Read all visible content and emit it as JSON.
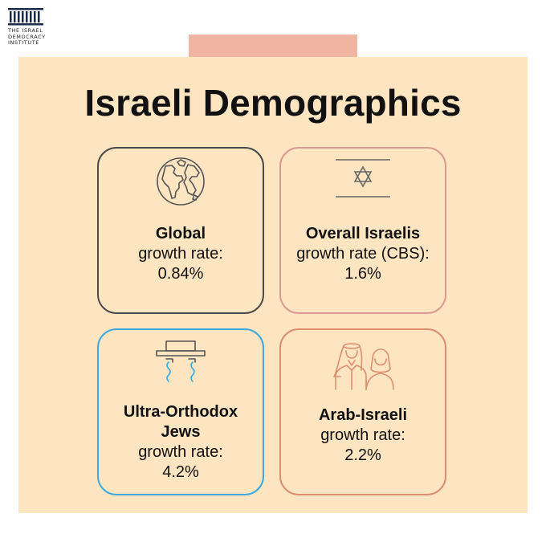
{
  "logo": {
    "line1": "THE ISRAEL",
    "line2": "DEMOCRACY",
    "line3": "INSTITUTE",
    "icon": "building-columns-icon"
  },
  "title": "Israeli Demographics",
  "cards": [
    {
      "label": "Global",
      "sub": "growth rate:",
      "value": "0.84%",
      "icon": "globe-icon",
      "border": "#4a4a4a"
    },
    {
      "label": "Overall Israelis",
      "sub": "growth rate (CBS):",
      "value": "1.6%",
      "icon": "israeli-flag-icon",
      "border": "#d89a92"
    },
    {
      "label": "Ultra-Orthodox",
      "label2": "Jews",
      "sub": "growth rate:",
      "value": "4.2%",
      "icon": "hat-and-sidelocks-icon",
      "border": "#3fa8df"
    },
    {
      "label": "Arab-Israeli",
      "sub": "growth rate:",
      "value": "2.2%",
      "icon": "arab-couple-icon",
      "border": "#dc8e6f"
    }
  ],
  "colors": {
    "panel": "#fde5c2",
    "tab": "#f0b5a1"
  }
}
